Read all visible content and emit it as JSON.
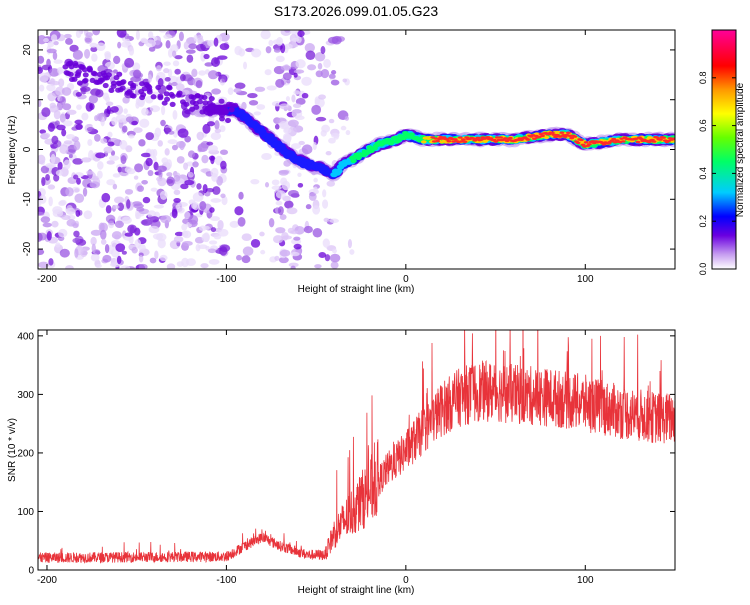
{
  "title": "S173.2026.099.01.05.G23",
  "chart_data": [
    {
      "type": "heatmap",
      "name": "spectrogram",
      "xlabel": "Height of straight line (km)",
      "ylabel": "Frequency (Hz)",
      "xlim": [
        -205,
        150
      ],
      "ylim": [
        -24,
        24
      ],
      "x_ticks": [
        -200,
        -100,
        0,
        100
      ],
      "y_ticks": [
        -20,
        -10,
        0,
        10,
        20
      ],
      "ridge": [
        [
          -95,
          8
        ],
        [
          -85,
          5
        ],
        [
          -75,
          2
        ],
        [
          -65,
          -1
        ],
        [
          -55,
          -3
        ],
        [
          -45,
          -4
        ],
        [
          -40,
          -5
        ],
        [
          -35,
          -3
        ],
        [
          -25,
          -1
        ],
        [
          -15,
          1
        ],
        [
          -5,
          2
        ],
        [
          0,
          3
        ],
        [
          10,
          2
        ],
        [
          30,
          2
        ],
        [
          60,
          2
        ],
        [
          80,
          3
        ],
        [
          90,
          3
        ],
        [
          100,
          1
        ],
        [
          120,
          2
        ],
        [
          150,
          2
        ]
      ],
      "colorbar": {
        "label": "Normalized spectral amplitude",
        "range": [
          0,
          1
        ],
        "ticks": [
          "0.0",
          "0.2",
          "0.4",
          "0.6",
          "0.8"
        ],
        "tick_values": [
          0,
          0.2,
          0.4,
          0.6,
          0.8
        ]
      }
    },
    {
      "type": "line",
      "name": "snr",
      "xlabel": "Height of straight line (km)",
      "ylabel": "SNR (10 * v/v)",
      "xlim": [
        -205,
        150
      ],
      "ylim": [
        0,
        410
      ],
      "x_ticks": [
        -200,
        -100,
        0,
        100
      ],
      "y_ticks": [
        0,
        100,
        200,
        300,
        400
      ],
      "color": "#e8333a",
      "envelope_x": [
        -205,
        -100,
        -90,
        -80,
        -70,
        -55,
        -45,
        -40,
        -30,
        -20,
        -10,
        0,
        10,
        20,
        30,
        40,
        50,
        60,
        80,
        100,
        120,
        140,
        150
      ],
      "envelope_y": [
        20,
        22,
        40,
        55,
        40,
        25,
        25,
        60,
        95,
        130,
        170,
        200,
        235,
        270,
        290,
        300,
        300,
        295,
        290,
        280,
        265,
        255,
        255
      ]
    }
  ]
}
